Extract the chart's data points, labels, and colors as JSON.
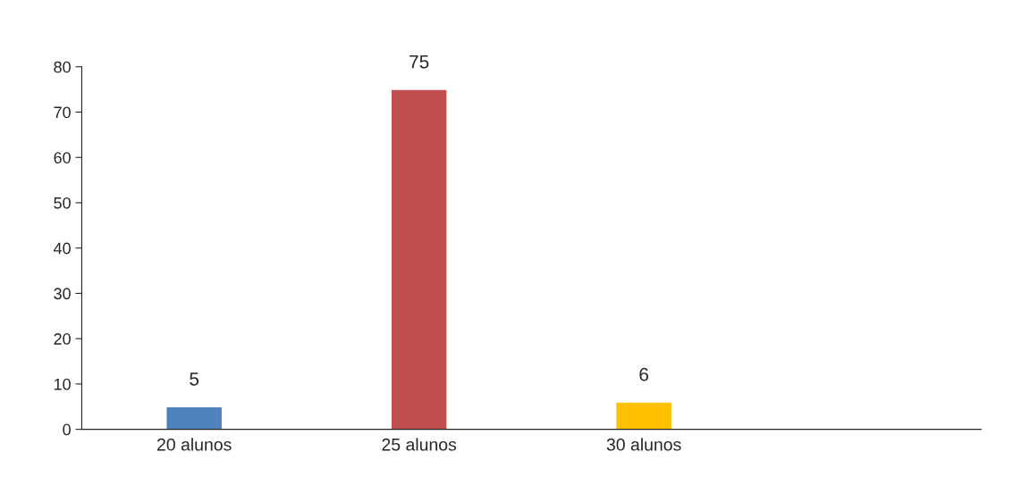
{
  "chart_data": {
    "type": "bar",
    "categories": [
      "20 alunos",
      "25 alunos",
      "30 alunos",
      null
    ],
    "values": [
      5,
      75,
      6,
      null
    ],
    "colors": [
      "#4f81bd",
      "#c0504d",
      "#ffc000",
      "#4f81bd"
    ],
    "ylim": [
      0,
      80
    ],
    "yticks": [
      0,
      10,
      20,
      30,
      40,
      50,
      60,
      70,
      80
    ],
    "data_labels": true,
    "grid": false,
    "legend": false
  }
}
